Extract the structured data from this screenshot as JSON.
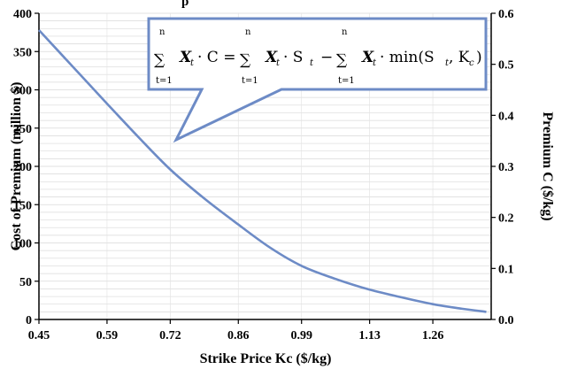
{
  "chart_data": {
    "type": "line",
    "title": "",
    "top_text": "p",
    "xlabel": "Strike Price Kc ($/kg)",
    "ylabel_left": "Cost of Premium (million $)",
    "ylabel_right": "Premium C ($/kg)",
    "xlim": [
      0.45,
      1.38
    ],
    "ylim_left": [
      0,
      400
    ],
    "ylim_right": [
      0,
      0.6
    ],
    "x_ticks": [
      "0.45",
      "0.59",
      "0.72",
      "0.86",
      "0.99",
      "1.13",
      "1.26"
    ],
    "y_left_ticks": [
      "0",
      "50",
      "100",
      "150",
      "200",
      "250",
      "300",
      "350",
      "400"
    ],
    "y_right_ticks": [
      "0.0",
      "0.1",
      "0.2",
      "0.3",
      "0.4",
      "0.5",
      "0.6"
    ],
    "grid": true,
    "series": [
      {
        "color": "#6d8bc6",
        "x": [
          0.45,
          0.52,
          0.59,
          0.655,
          0.72,
          0.79,
          0.86,
          0.925,
          0.99,
          1.06,
          1.13,
          1.195,
          1.26,
          1.32,
          1.37
        ],
        "y": [
          378,
          330,
          282,
          238,
          196,
          158,
          124,
          94,
          70,
          53,
          39,
          29,
          20,
          14,
          10
        ]
      }
    ]
  },
  "callout": {
    "lead": "∑",
    "eq_mid": "∑",
    "eq_tail": "∑",
    "sum_top": "n",
    "sum_bottom": "t=1",
    "term1_a": "X",
    "term1_b": "· C =",
    "term2_a": "X",
    "term2_b": "· S",
    "minus": "−",
    "term3_a": "X",
    "term3_b": "· min(S",
    "term3_c": ", K",
    "term3_d": ")",
    "sub_t": "t",
    "sub_c": "c"
  }
}
